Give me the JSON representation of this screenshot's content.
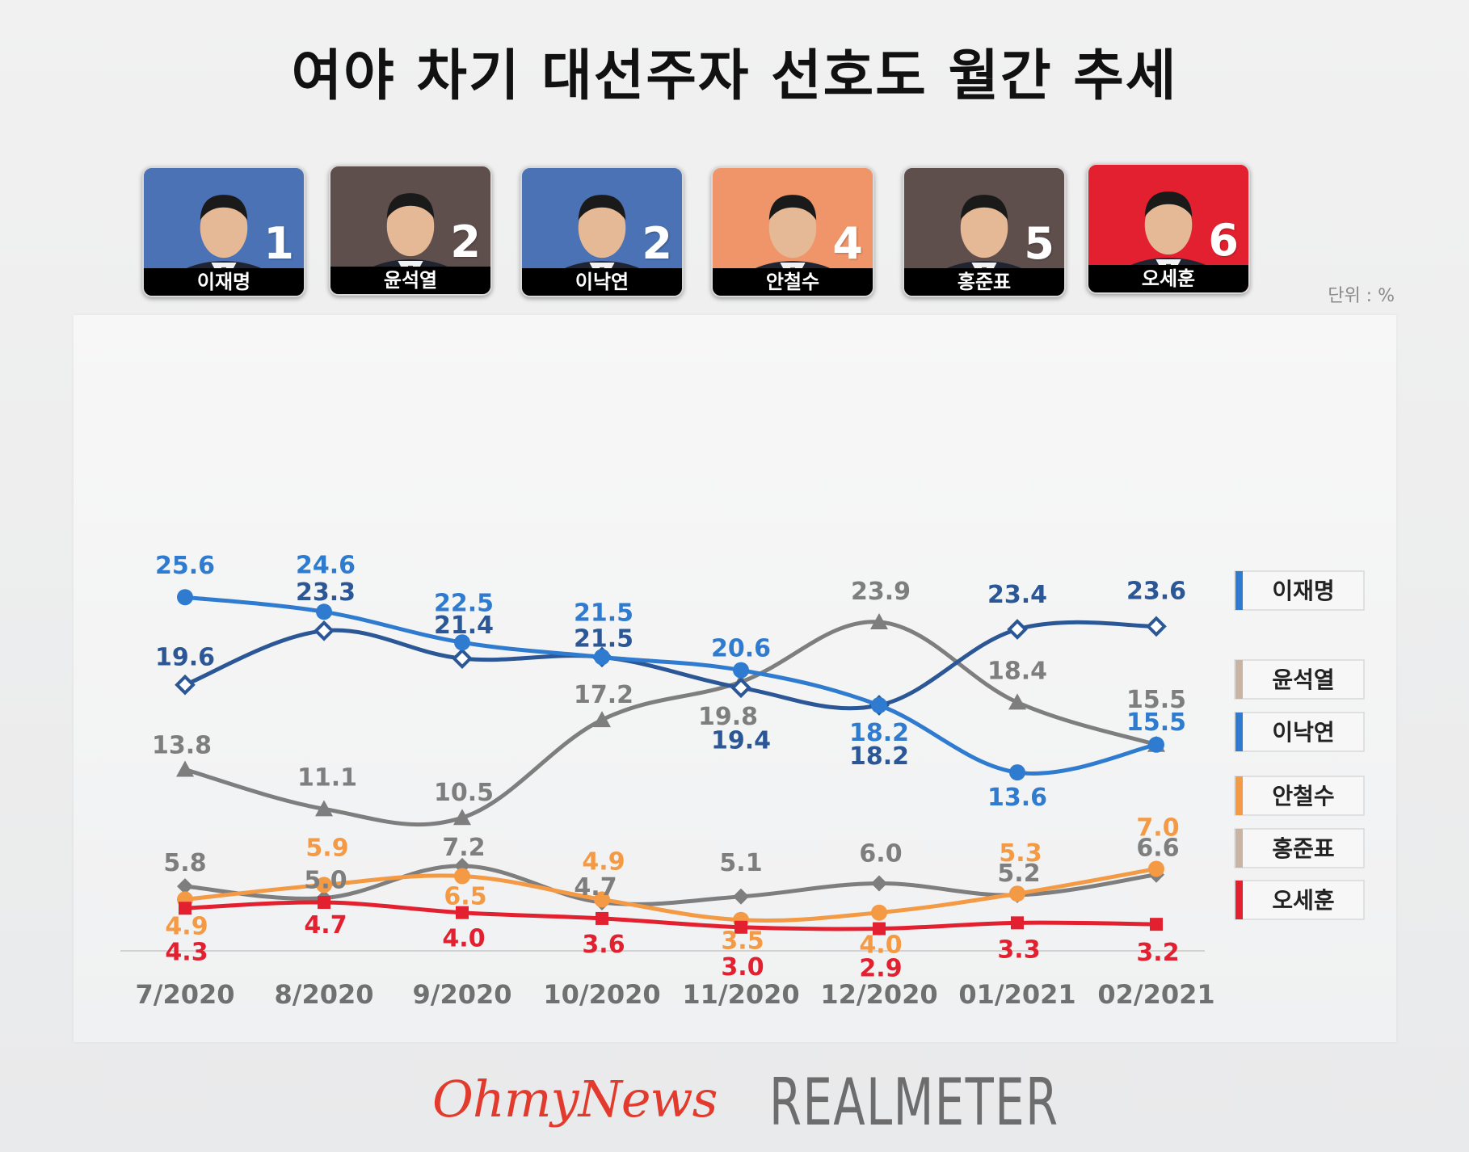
{
  "title": "여야 차기 대선주자 선호도 월간 추세",
  "unit": "단위 : %",
  "cards": [
    {
      "name": "이재명",
      "rank": "1",
      "bg": "#4a72b4"
    },
    {
      "name": "윤석열",
      "rank": "2",
      "bg": "#5e4e4c"
    },
    {
      "name": "이낙연",
      "rank": "2",
      "bg": "#4a72b4"
    },
    {
      "name": "안철수",
      "rank": "4",
      "bg": "#f0956a"
    },
    {
      "name": "홍준표",
      "rank": "5",
      "bg": "#5e4e4c"
    },
    {
      "name": "오세훈",
      "rank": "6",
      "bg": "#e3202f"
    }
  ],
  "chart_data": {
    "type": "line",
    "categories": [
      "7/2020",
      "8/2020",
      "9/2020",
      "10/2020",
      "11/2020",
      "12/2020",
      "01/2021",
      "02/2021"
    ],
    "series": [
      {
        "name": "이재명",
        "color": "#2f7bd0",
        "marker": "circle",
        "values": [
          25.6,
          24.6,
          22.5,
          21.5,
          20.6,
          18.2,
          13.6,
          15.5
        ]
      },
      {
        "name": "이낙연",
        "color": "#2b5796",
        "marker": "diamond-open",
        "values": [
          19.6,
          23.3,
          21.4,
          21.5,
          19.4,
          18.2,
          23.4,
          23.6
        ]
      },
      {
        "name": "윤석열",
        "color": "#7e7e7e",
        "marker": "triangle",
        "values": [
          13.8,
          11.1,
          10.5,
          17.2,
          19.8,
          23.9,
          18.4,
          15.5
        ]
      },
      {
        "name": "안철수",
        "color": "#f49a44",
        "marker": "circle",
        "values": [
          4.9,
          5.9,
          6.5,
          4.9,
          3.5,
          4.0,
          5.3,
          7.0
        ]
      },
      {
        "name": "홍준표",
        "color": "#7e7e7e",
        "marker": "diamond",
        "values": [
          5.8,
          5.0,
          7.2,
          4.7,
          5.1,
          6.0,
          5.2,
          6.6
        ]
      },
      {
        "name": "오세훈",
        "color": "#e3202f",
        "marker": "square",
        "values": [
          4.3,
          4.7,
          4.0,
          3.6,
          3.0,
          2.9,
          3.3,
          3.2
        ]
      }
    ],
    "value_labels": [
      [
        "25.6",
        "24.6",
        "22.5",
        "21.5",
        "20.6",
        "18.2",
        "13.6",
        "15.5"
      ],
      [
        "19.6",
        "23.3",
        "21.4",
        "21.5",
        "19.4",
        "18.2",
        "23.4",
        "23.6"
      ],
      [
        "13.8",
        "11.1",
        "10.5",
        "17.2",
        "19.8",
        "23.9",
        "18.4",
        "15.5"
      ],
      [
        "4.9",
        "5.9",
        "6.5",
        "4.9",
        "3.5",
        "4.0",
        "5.3",
        "7.0"
      ],
      [
        "5.8",
        "5.0",
        "7.2",
        "4.7",
        "5.1",
        "6.0",
        "5.2",
        "6.6"
      ],
      [
        "4.3",
        "4.7",
        "4.0",
        "3.6",
        "3.0",
        "2.9",
        "3.3",
        "3.2"
      ]
    ],
    "legend": [
      {
        "label": "이재명",
        "color": "#2f7bd0"
      },
      {
        "label": "윤석열",
        "color": "#c9b3a3"
      },
      {
        "label": "이낙연",
        "color": "#2f7bd0"
      },
      {
        "label": "안철수",
        "color": "#f49a44"
      },
      {
        "label": "홍준표",
        "color": "#c9b3a3"
      },
      {
        "label": "오세훈",
        "color": "#e3202f"
      }
    ],
    "legend_position": "right",
    "grid": false
  },
  "footer": {
    "left": "OhmyNews",
    "right": "REALMETER"
  }
}
